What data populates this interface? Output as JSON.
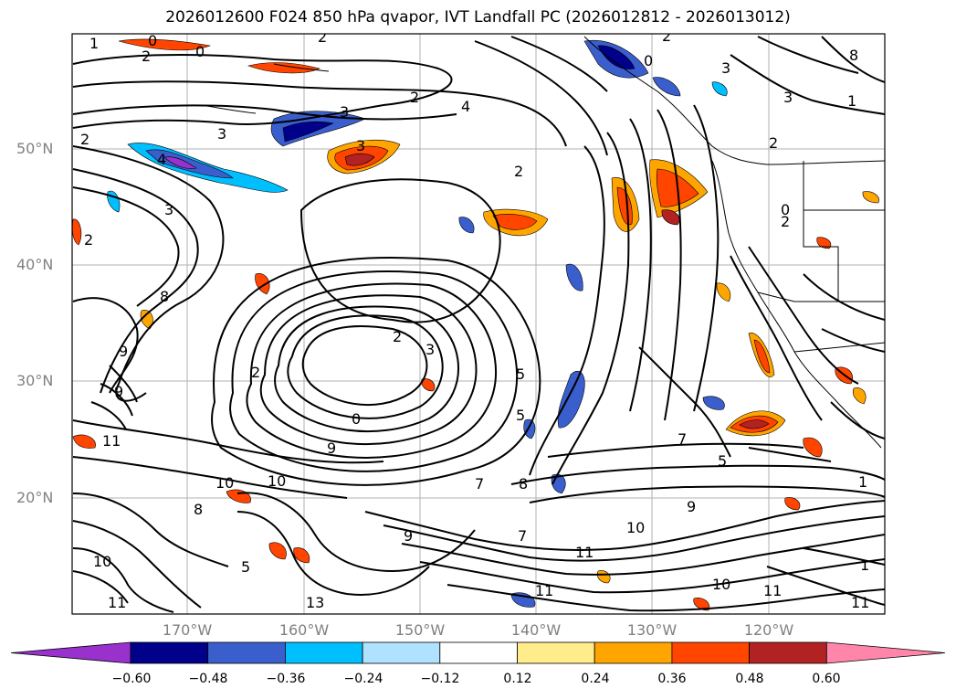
{
  "title": "2026012600 F024 850 hPa qvapor, IVT Landfall PC (2026012812 - 2026013012)",
  "lat_labels": [
    "50°N",
    "40°N",
    "30°N",
    "20°N"
  ],
  "lon_labels": [
    "170°W",
    "160°W",
    "150°W",
    "140°W",
    "130°W",
    "120°W"
  ],
  "colorbar": {
    "ticks": [
      "−0.60",
      "−0.48",
      "−0.36",
      "−0.24",
      "−0.12",
      "0.12",
      "0.24",
      "0.36",
      "0.48",
      "0.60"
    ],
    "colors": [
      "#9932cc",
      "#00008b",
      "#3a5fcd",
      "#00bfff",
      "#b0e2ff",
      "#ffffff",
      "#ffec8b",
      "#ffa500",
      "#ff4500",
      "#b22222",
      "#ff86aa"
    ],
    "extend": "both"
  },
  "contour_labels": [
    "1",
    "0",
    "2",
    "0",
    "2",
    "2",
    "3",
    "3",
    "4",
    "3",
    "2",
    "4",
    "3",
    "2",
    "2",
    "8",
    "1",
    "0",
    "2",
    "0",
    "2",
    "3",
    "2",
    "3",
    "5",
    "8",
    "2",
    "9",
    "2",
    "3",
    "5",
    "9",
    "11",
    "9",
    "0",
    "10",
    "10",
    "8",
    "7",
    "8",
    "9",
    "5",
    "11",
    "7",
    "10",
    "9",
    "10",
    "11",
    "11",
    "10",
    "11",
    "13",
    "11",
    "1",
    "1",
    "5",
    "7"
  ]
}
